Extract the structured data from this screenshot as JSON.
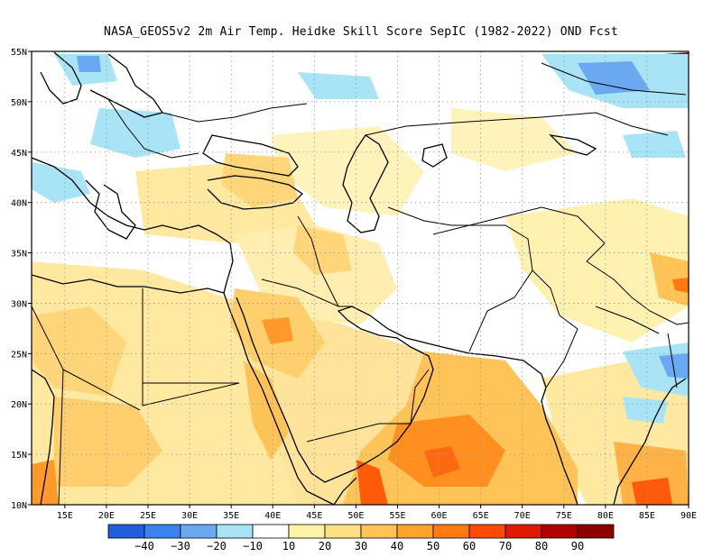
{
  "title": "NASA_GEOS5v2  2m Air Temp. Heidke Skill Score SepIC (1982-2022) OND Fcst",
  "map": {
    "lon_range": [
      11,
      90
    ],
    "lat_range": [
      10,
      55
    ],
    "lat_ticks": [
      "10N",
      "15N",
      "20N",
      "25N",
      "30N",
      "35N",
      "40N",
      "45N",
      "50N",
      "55N"
    ],
    "lon_ticks": [
      "15E",
      "20E",
      "25E",
      "30E",
      "35E",
      "40E",
      "45E",
      "50E",
      "55E",
      "60E",
      "65E",
      "70E",
      "75E",
      "80E",
      "85E",
      "90E"
    ],
    "gridlines": "dotted"
  },
  "colorbar": {
    "labels": [
      "-40",
      "-30",
      "-20",
      "-10",
      "10",
      "20",
      "30",
      "40",
      "50",
      "60",
      "70",
      "80",
      "90"
    ],
    "colors": [
      "#1f5fdc",
      "#3b82ee",
      "#6aa8f2",
      "#a8e4f6",
      "#ffffff",
      "#fff3a6",
      "#ffdf82",
      "#ffc357",
      "#ffa32a",
      "#ff7a12",
      "#ff4a06",
      "#e01a02",
      "#b00000",
      "#8c0000"
    ]
  }
}
